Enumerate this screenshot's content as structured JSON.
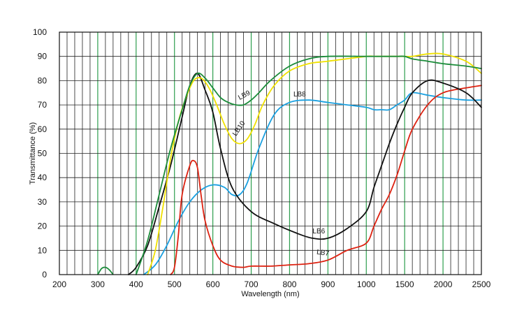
{
  "chart_data": {
    "type": "line",
    "xlabel": "Wavelength (nm)",
    "ylabel": "Transmittance (%)",
    "ylim": [
      0,
      100
    ],
    "x_tick_labels": [
      "200",
      "300",
      "400",
      "500",
      "600",
      "700",
      "800",
      "900",
      "1000",
      "1500",
      "2000",
      "2500"
    ],
    "y_ticks": [
      0,
      10,
      20,
      30,
      40,
      50,
      60,
      70,
      80,
      90,
      100
    ],
    "grid": true,
    "series": [
      {
        "name": "LB6",
        "color": "#111111",
        "x": [
          380,
          400,
          430,
          460,
          490,
          520,
          540,
          560,
          580,
          600,
          620,
          650,
          700,
          760,
          820,
          860,
          900,
          950,
          1000,
          1100,
          1200,
          1300,
          1400,
          1500,
          1600,
          1800,
          2000,
          2300,
          2500
        ],
        "y": [
          0,
          3,
          12,
          28,
          45,
          65,
          78,
          83,
          76,
          67,
          52,
          36,
          26,
          21,
          17,
          15,
          15,
          19,
          26,
          36,
          45,
          54,
          62,
          69,
          75,
          80,
          79,
          75,
          69
        ]
      },
      {
        "name": "LB7",
        "color": "#dd2211",
        "x": [
          490,
          500,
          510,
          520,
          540,
          550,
          560,
          570,
          580,
          600,
          620,
          650,
          680,
          700,
          750,
          800,
          850,
          900,
          950,
          1000,
          1100,
          1200,
          1300,
          1400,
          1500,
          1600,
          1800,
          2000,
          2300,
          2500
        ],
        "y": [
          0,
          3,
          16,
          33,
          45,
          47,
          44,
          32,
          22,
          12,
          6,
          3.5,
          3,
          3.5,
          3.5,
          4,
          4.5,
          6,
          10,
          13,
          20,
          27,
          33,
          41,
          51,
          60,
          70,
          75,
          77,
          78
        ]
      },
      {
        "name": "LB8",
        "color": "#1aa0e0",
        "x": [
          420,
          450,
          480,
          510,
          540,
          570,
          600,
          630,
          650,
          670,
          690,
          720,
          760,
          800,
          850,
          900,
          950,
          1000,
          1100,
          1200,
          1300,
          1400,
          1500,
          1600,
          1800,
          2000,
          2300,
          2500
        ],
        "y": [
          0,
          4,
          12,
          22,
          30,
          35,
          37,
          36,
          33,
          33,
          38,
          52,
          66,
          71,
          72,
          71,
          70,
          69,
          68,
          68,
          68,
          70,
          72,
          75,
          74,
          73,
          72,
          72
        ]
      },
      {
        "name": "LB9",
        "color": "#1b8c3a",
        "x": [
          400,
          430,
          460,
          490,
          520,
          540,
          560,
          580,
          600,
          620,
          640,
          660,
          680,
          700,
          720,
          750,
          800,
          850,
          900,
          1000,
          1100,
          1200,
          1300,
          1400,
          1500,
          1600,
          1800,
          2000,
          2300,
          2500
        ],
        "y": [
          0,
          14,
          33,
          52,
          68,
          78,
          83,
          81,
          77,
          73,
          71,
          70,
          70,
          72,
          75,
          80,
          86,
          89,
          90,
          90,
          90,
          90,
          90,
          90,
          90,
          89,
          88,
          87,
          86,
          85
        ]
      },
      {
        "name": "LB10",
        "color": "#f0e100",
        "x": [
          430,
          450,
          470,
          490,
          510,
          530,
          550,
          570,
          590,
          610,
          630,
          650,
          670,
          690,
          710,
          730,
          760,
          800,
          850,
          900,
          1000,
          1100,
          1200,
          1300,
          1400,
          1500,
          1600,
          1800,
          2000,
          2300,
          2500
        ],
        "y": [
          0,
          10,
          28,
          48,
          63,
          73,
          80,
          81,
          77,
          70,
          62,
          56,
          54,
          56,
          62,
          70,
          78,
          84,
          87,
          88,
          90,
          90,
          90,
          90,
          90,
          90,
          90,
          91,
          91,
          88,
          83
        ]
      }
    ],
    "absorbance_bump": {
      "color": "#1b8c3a",
      "x": [
        300,
        310,
        320,
        330,
        340
      ],
      "y": [
        0,
        2.5,
        3,
        2,
        0
      ]
    },
    "series_label_text": {
      "LB6": "LB6",
      "LB7": "LB7",
      "LB8": "LB8",
      "LB9": "LB9",
      "LB10": "LB10"
    }
  }
}
